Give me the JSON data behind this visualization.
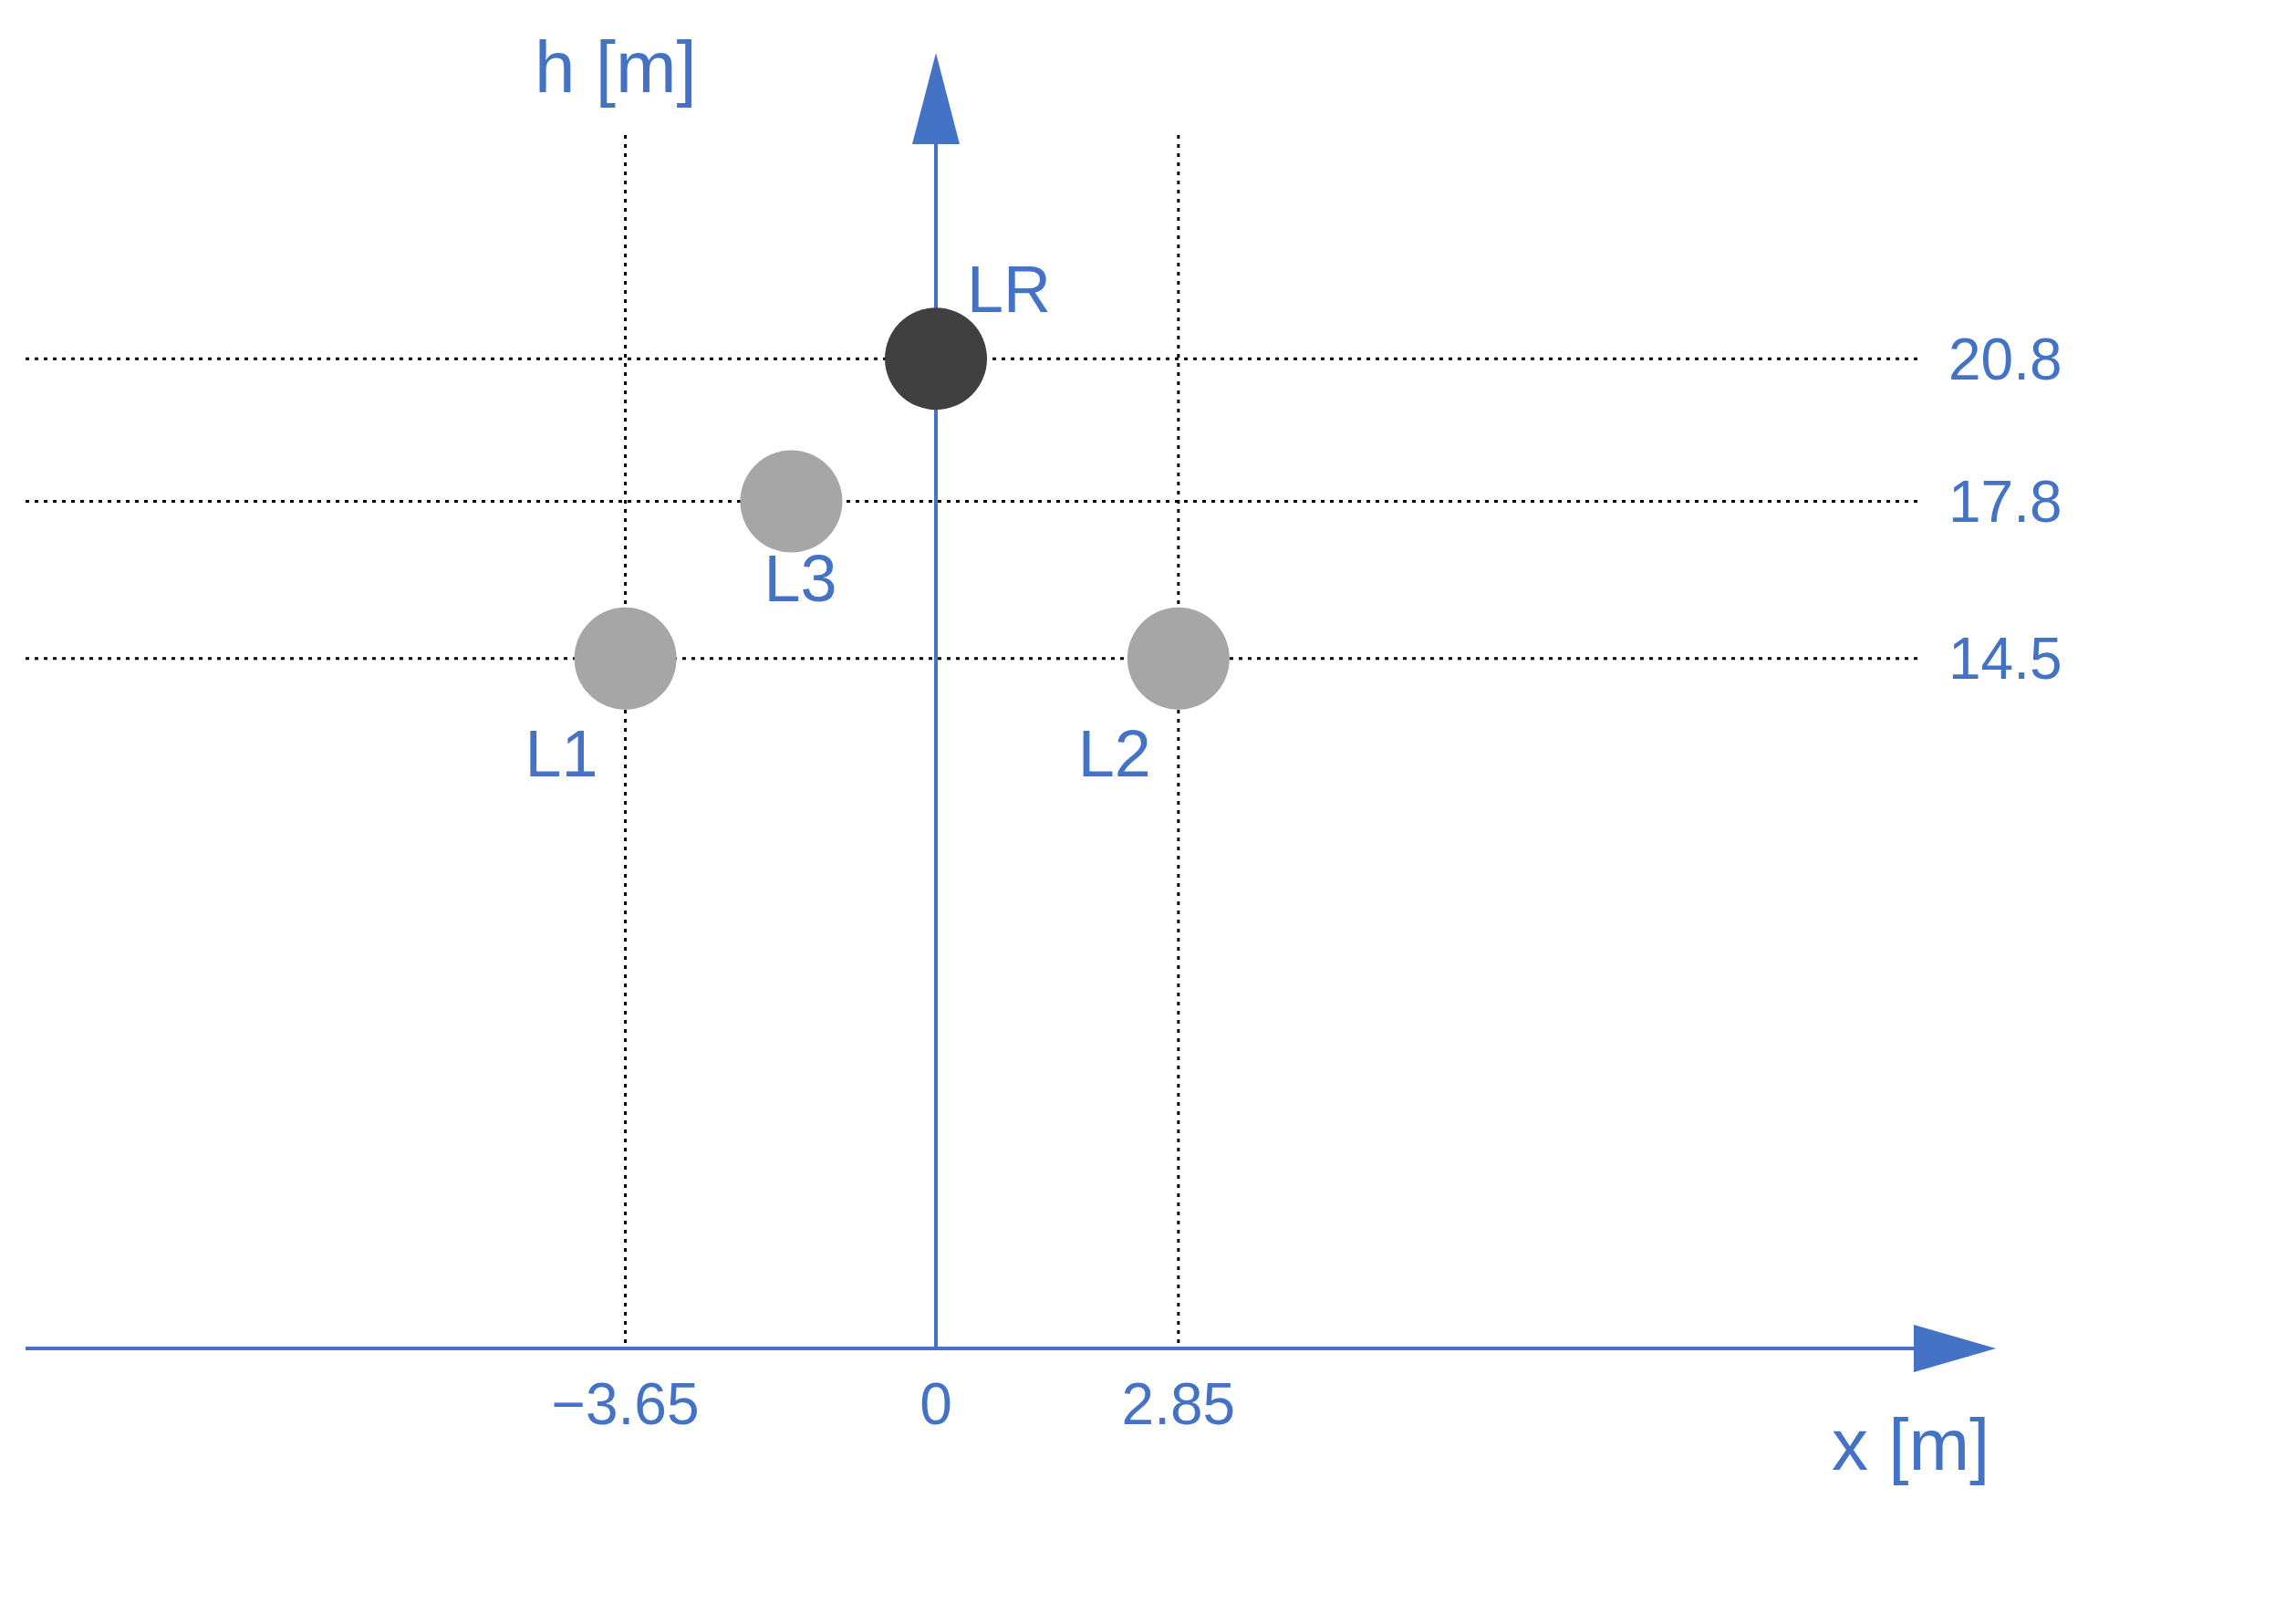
{
  "chart_data": {
    "type": "scatter",
    "xlabel": "x [m]",
    "ylabel": "h [m]",
    "xlim": [
      -10.7,
      11.6
    ],
    "ylim": [
      0,
      25.5
    ],
    "xticks": [
      {
        "value": -3.65,
        "label": "−3.65"
      },
      0,
      2.85
    ],
    "yticks": [
      14.5,
      17.8,
      20.8
    ],
    "grid": true,
    "line_style": "dotted",
    "marker": "circle",
    "ref_lines": [
      {
        "axis": "x",
        "value": 0,
        "color": "#4472c4"
      }
    ],
    "series": [
      {
        "name": "L1",
        "color": "#a6a6a6",
        "x": [
          -3.65
        ],
        "values": [
          14.5
        ]
      },
      {
        "name": "L2",
        "color": "#a6a6a6",
        "x": [
          2.85
        ],
        "values": [
          14.5
        ]
      },
      {
        "name": "L3",
        "color": "#a6a6a6",
        "x": [
          -1.7
        ],
        "values": [
          17.8
        ]
      },
      {
        "name": "LR",
        "color": "#404040",
        "x": [
          0
        ],
        "values": [
          20.8
        ]
      }
    ]
  }
}
